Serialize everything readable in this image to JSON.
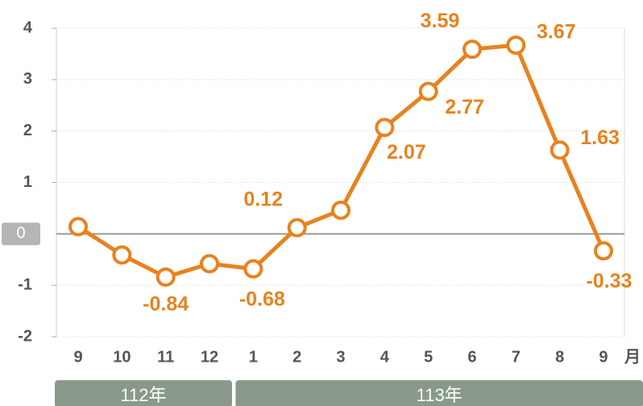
{
  "chart_data": {
    "type": "line",
    "categories": [
      "9",
      "10",
      "11",
      "12",
      "1",
      "2",
      "3",
      "4",
      "5",
      "6",
      "7",
      "8",
      "9"
    ],
    "x_unit": "月",
    "groups": [
      {
        "label": "112年",
        "span": [
          0,
          3
        ]
      },
      {
        "label": "113年",
        "span": [
          4,
          12
        ]
      }
    ],
    "series": [
      {
        "name": "value",
        "color": "#e8821e",
        "values": [
          0.14,
          -0.41,
          -0.84,
          -0.58,
          -0.68,
          0.12,
          0.46,
          2.07,
          2.77,
          3.59,
          3.67,
          1.63,
          -0.33
        ],
        "value_labels": [
          null,
          null,
          "-0.84",
          null,
          "-0.68",
          "0.12",
          null,
          "2.07",
          "2.77",
          "3.59",
          "3.67",
          "1.63",
          "-0.33"
        ]
      }
    ],
    "ylim": [
      -2,
      4
    ],
    "yticks": [
      -2,
      -1,
      0,
      1,
      2,
      3,
      4
    ],
    "grid": true
  }
}
